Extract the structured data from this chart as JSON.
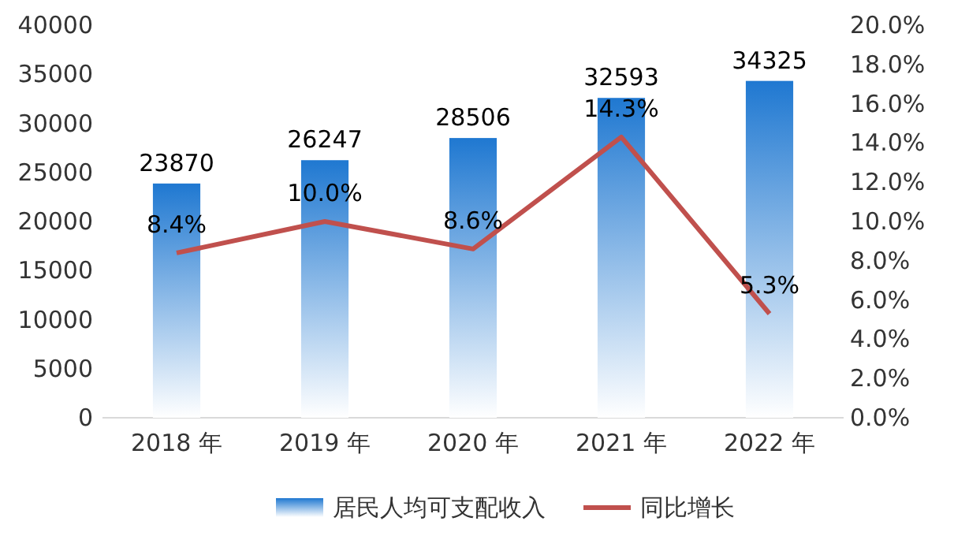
{
  "chart_data": {
    "type": "bar",
    "categories": [
      "2018 年",
      "2019 年",
      "2020 年",
      "2021 年",
      "2022 年"
    ],
    "series": [
      {
        "name": "居民人均可支配收入",
        "color": "#1f78d1",
        "values": [
          23870,
          26247,
          28506,
          32593,
          34325
        ],
        "value_labels": [
          "23870",
          "26247",
          "28506",
          "32593",
          "34325"
        ]
      },
      {
        "name": "同比增长",
        "type": "line",
        "axis": "y2",
        "color": "#c0504d",
        "values": [
          8.4,
          10.0,
          8.6,
          14.3,
          5.3
        ],
        "value_labels": [
          "8.4%",
          "10.0%",
          "8.6%",
          "14.3%",
          "5.3%"
        ]
      }
    ],
    "ylim": [
      0,
      40000
    ],
    "yticks": [
      0,
      5000,
      10000,
      15000,
      20000,
      25000,
      30000,
      35000,
      40000
    ],
    "y2lim": [
      0,
      20
    ],
    "y2ticks": [
      {
        "value": 0,
        "label": "0.0%"
      },
      {
        "value": 2,
        "label": "2.0%"
      },
      {
        "value": 4,
        "label": "4.0%"
      },
      {
        "value": 6,
        "label": "6.0%"
      },
      {
        "value": 8,
        "label": "8.0%"
      },
      {
        "value": 10,
        "label": "10.0%"
      },
      {
        "value": 12,
        "label": "12.0%"
      },
      {
        "value": 14,
        "label": "14.0%"
      },
      {
        "value": 16,
        "label": "16.0%"
      },
      {
        "value": 18,
        "label": "18.0%"
      },
      {
        "value": 20,
        "label": "20.0%"
      }
    ],
    "legend": "bottom",
    "grid": false
  }
}
